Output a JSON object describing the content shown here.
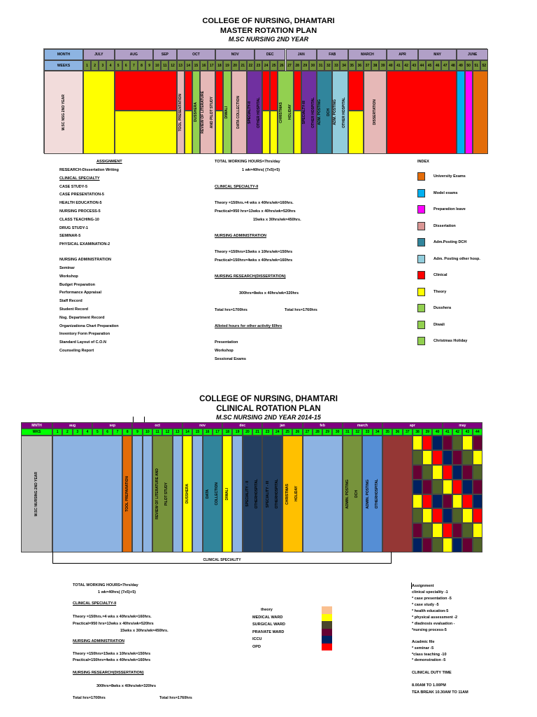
{
  "top": {
    "title": "COLLEGE OF NURSING, DHAMTARI",
    "subtitle": "MASTER ROTATION PLAN",
    "course": "M.SC NURSING 2ND YEAR",
    "chart": {
      "month_label": "MONTH",
      "weeks_label": "WEEKS",
      "row_label": "M.SC NSG 2ND YEAR",
      "months": [
        {
          "label": "JULY",
          "span": 4
        },
        {
          "label": "AUG",
          "span": 5
        },
        {
          "label": "SEP",
          "span": 3
        },
        {
          "label": "OCT",
          "span": 5
        },
        {
          "label": "NOV",
          "span": 5
        },
        {
          "label": "DEC",
          "span": 4
        },
        {
          "label": "JAN",
          "span": 4
        },
        {
          "label": "FAB",
          "span": 4
        },
        {
          "label": "MARCH",
          "span": 5
        },
        {
          "label": "APR",
          "span": 4
        },
        {
          "label": "MAY",
          "span": 5
        },
        {
          "label": "JUNE",
          "span": 4
        }
      ],
      "weeks": [
        "1",
        "2",
        "3",
        "4",
        "5",
        "6",
        "7",
        "8",
        "9",
        "10",
        "11",
        "12",
        "13",
        "14",
        "15",
        "16",
        "17",
        "18",
        "19",
        "20",
        "21",
        "22",
        "23",
        "24",
        "25",
        "26",
        "27",
        "28",
        "29",
        "30",
        "31",
        "32",
        "33",
        "34",
        "35",
        "36",
        "37",
        "38",
        "39",
        "40",
        "41",
        "42",
        "43",
        "44",
        "45",
        "46",
        "47",
        "48",
        "49",
        "50",
        "51",
        "52"
      ],
      "blocks": [
        {
          "from": 1,
          "to": 4,
          "color": "#ffff00",
          "lines": []
        },
        {
          "from": 5,
          "to": 12,
          "split": [
            "#ff0000",
            "#ffff00"
          ],
          "lines": []
        },
        {
          "from": 13,
          "to": 13,
          "color": "#e6b8b7",
          "lines": [
            "TOOL PRESENTATION"
          ]
        },
        {
          "from": 14,
          "to": 14,
          "split": [
            "#ff0000",
            "#ffff00"
          ],
          "lines": []
        },
        {
          "from": 15,
          "to": 15,
          "color": "#92d050",
          "lines": [
            "DUSSHERA"
          ]
        },
        {
          "from": 16,
          "to": 17,
          "color": "#e6b8b7",
          "lines": [
            "REVIEW OF LITERATURE",
            "AND PILOT STUDY"
          ]
        },
        {
          "from": 18,
          "to": 18,
          "split": [
            "#ff0000",
            "#ffff00"
          ],
          "lines": []
        },
        {
          "from": 19,
          "to": 19,
          "color": "#92d050",
          "lines": [
            "DIWALI"
          ]
        },
        {
          "from": 20,
          "to": 21,
          "color": "#e6b8b7",
          "lines": [
            "DATA COLLECTION"
          ]
        },
        {
          "from": 22,
          "to": 23,
          "color": "#7030a0",
          "lines": [
            "SPECIALTY-II",
            "OTHER HOSPITAL"
          ]
        },
        {
          "from": 24,
          "to": 24,
          "split": [
            "#ff0000",
            "#ffff00"
          ],
          "lines": []
        },
        {
          "from": 25,
          "to": 25,
          "split": [
            "#ff0000",
            "#ffff00"
          ],
          "lines": []
        },
        {
          "from": 26,
          "to": 27,
          "color": "#92d050",
          "lines": [
            "CHRISTMAS",
            "HOLIDAY"
          ]
        },
        {
          "from": 28,
          "to": 28,
          "split": [
            "#ff0000",
            "#ffff00"
          ],
          "lines": []
        },
        {
          "from": 29,
          "to": 30,
          "color": "#7030a0",
          "lines": [
            "SPECIALTY-III",
            "OTHER HOSPITAL"
          ]
        },
        {
          "from": 31,
          "to": 32,
          "color": "#31859c",
          "lines": [
            "ADM. POSTING",
            "DCH"
          ]
        },
        {
          "from": 33,
          "to": 34,
          "color": "#92cddc",
          "lines": [
            "ADM. POSTING",
            "OTHER HOSPITAL"
          ]
        },
        {
          "from": 35,
          "to": 36,
          "split": [
            "#ff0000",
            "#ffff00"
          ],
          "lines": []
        },
        {
          "from": 37,
          "to": 39,
          "color": "#e6b8b7",
          "lines": [
            "DISSERTATION"
          ]
        },
        {
          "from": 40,
          "to": 48,
          "color": "#ff0000",
          "lines": []
        },
        {
          "from": 49,
          "to": 49,
          "color": "#00b0f0",
          "lines": []
        },
        {
          "from": 50,
          "to": 50,
          "color": "#ff00ff",
          "lines": []
        },
        {
          "from": 51,
          "to": 52,
          "color": "#e36c09",
          "lines": []
        }
      ]
    },
    "assignment": {
      "heading": "ASSIGNMENT",
      "items": [
        "RESEARCH-Dissertation Writing",
        "CLINICAL SPECIALTY",
        "CASE STUDY-5",
        "CASE PRESENTATION-5",
        "HEALTH EDUCATION-5",
        "NURSING PROCESS-5",
        "CLASS TEACHING-10",
        "DRUG STUDY-1",
        "SEMINAR-5",
        "PHYSICAL EXAMINATION-2"
      ],
      "admin_heading": "NURSING ADMINISTRATION",
      "admin_items": [
        "Seminar",
        "Workshop",
        "Budget Preparation",
        "Performance Appraisal",
        "Staff Record",
        "Student Record",
        "Nsg. Department Record",
        "Organizationa Chart Preparation",
        "Inventory Form Preparation",
        "Standard Layout of C.O.N",
        "Counseling Report"
      ]
    },
    "hours": {
      "total_working": "TOTAL WORKING HOURS=7hrs/day",
      "week": "1 wk=40hrs( (7x5)+5)",
      "cs_heading": "CLINICAL SPECIALTY-II",
      "cs_theory": "Theory     =150hrs.=4 wks x 40hrs/wk=160hrs.",
      "cs_practical": "Practical=950 hrs=13wks x 40hrs/wk=520hrs",
      "cs_practical2": "15wks x 30hrs/wk=450hrs.",
      "na_heading": "NURSING ADMINISTRATION",
      "na_theory": "Theory     =150hrs=15wks x 10hrs/wk=150hrs",
      "na_practical": "Practical=150hrs=4wks x 40hrs/wk=160hrs",
      "nr_heading": "NURSING RESEARCH(DISSERTATION)",
      "nr_hours": "300hrs=8wks x 40hrs/wk=320hrs",
      "total1": "Total hrs=1700hrs",
      "total2": "Total hrs=1760hrs",
      "alloted": "Alloted hours for other activity 60hrs",
      "other": [
        "Presentation",
        "Workshop",
        "Sessional Exams"
      ]
    },
    "index": {
      "heading": "INDEX",
      "items": [
        {
          "label": "University Exams",
          "color": "#e36c09"
        },
        {
          "label": "Model exams",
          "color": "#00b0f0"
        },
        {
          "label": "Preparation leave",
          "color": "#ff00ff"
        },
        {
          "label": "Dissertation",
          "color": "#da9694"
        },
        {
          "label": "Adm.Posting DCH",
          "color": "#31859c"
        },
        {
          "label": "Adm. Posting other hosp.",
          "color": "#92cddc"
        },
        {
          "label": "Clinical",
          "color": "#ff0000"
        },
        {
          "label": "Theory",
          "color": "#ffff00"
        },
        {
          "label": "Dusshera",
          "color": "#92d050"
        },
        {
          "label": "Diwali",
          "color": "#92d050"
        },
        {
          "label": "Christmas Holiday",
          "color": "#92d050"
        }
      ]
    }
  },
  "bottom": {
    "title": "COLLEGE OF NURSING, DHAMTARI",
    "subtitle": "CLINICAL ROTATION PLAN",
    "course": "M.SC NURSING 2ND YEAR 2014-15",
    "chart": {
      "month_label": "MNTH",
      "weeks_label": "WKS",
      "row_label": "M.SC NURSING 2ND YEAR",
      "months": [
        {
          "label": "aug",
          "span": 4
        },
        {
          "label": "sep",
          "span": 4
        },
        {
          "label": "oct",
          "span": 5
        },
        {
          "label": "nov",
          "span": 4
        },
        {
          "label": "dec",
          "span": 4
        },
        {
          "label": "jan",
          "span": 4
        },
        {
          "label": "feb",
          "span": 4
        },
        {
          "label": "march",
          "span": 4
        },
        {
          "label": "apr",
          "span": 6
        },
        {
          "label": "may",
          "span": 4
        }
      ],
      "weeks": [
        "1",
        "2",
        "3",
        "4",
        "5",
        "6",
        "7",
        "8",
        "9",
        "10",
        "11",
        "12",
        "13",
        "14",
        "15",
        "16",
        "17",
        "18",
        "19",
        "20",
        "21",
        "23",
        "24",
        "25",
        "26",
        "27",
        "28",
        "29",
        "30",
        "31",
        "32",
        "33",
        "34",
        "35",
        "36",
        "37",
        "38",
        "39",
        "40",
        "41",
        "42",
        "43",
        "44"
      ],
      "blocks": [
        {
          "from": 1,
          "to": 7,
          "color": "#8db3e2",
          "lines": []
        },
        {
          "from": 8,
          "to": 8,
          "color": "#e36c09",
          "lines": [
            "TOOL PREPARATION"
          ]
        },
        {
          "from": 9,
          "to": 9,
          "color": "#8db3e2",
          "lines": []
        },
        {
          "from": 10,
          "to": 10,
          "color": "#8db3e2",
          "lines": []
        },
        {
          "from": 11,
          "to": 12,
          "color": "#77933c",
          "lines": [
            "REVIEW OF LITERATURE AND",
            "PILOT STUDY"
          ]
        },
        {
          "from": 13,
          "to": 13,
          "color": "#8db3e2",
          "lines": []
        },
        {
          "from": 14,
          "to": 14,
          "color": "#ffff00",
          "lines": [
            "DUSSHERA"
          ]
        },
        {
          "from": 15,
          "to": 15,
          "color": "#8db3e2",
          "lines": []
        },
        {
          "from": 16,
          "to": 17,
          "color": "#31849b",
          "lines": [
            "DATA",
            "COLLECTION"
          ]
        },
        {
          "from": 18,
          "to": 18,
          "color": "#ffff00",
          "lines": [
            "DIWALI"
          ]
        },
        {
          "from": 19,
          "to": 19,
          "color": "#8db3e2",
          "lines": []
        },
        {
          "from": 20,
          "to": 21,
          "color": "#243f60",
          "lines": [
            "SPECIALITY - II",
            "OTHERHOSPITAL"
          ]
        },
        {
          "from": 22,
          "to": 23,
          "color": "#243f60",
          "lines": [
            "SPECIALITY - III",
            "OTHERHOSPITAL"
          ]
        },
        {
          "from": 24,
          "to": 25,
          "color": "#ffc000",
          "lines": [
            "CHRISTMAS",
            "HOLIDAY"
          ]
        },
        {
          "from": 26,
          "to": 29,
          "color": "#8db3e2",
          "lines": []
        },
        {
          "from": 30,
          "to": 31,
          "color": "#77933c",
          "lines": [
            "ADMIN. POSTING",
            "DCH"
          ]
        },
        {
          "from": 32,
          "to": 33,
          "color": "#558ed5",
          "lines": [
            "ADMIN. POSTING",
            "OTHERHOSPITAL"
          ]
        },
        {
          "from": 34,
          "to": 36,
          "color": "#953735",
          "lines": []
        }
      ],
      "grid_from": 37,
      "grid_palette": {
        "Y": "#ffff00",
        "R": "#ff0000",
        "N": "#002060",
        "M": "#660033",
        "O": "#4f6228"
      },
      "grid": [
        "YRNMOYM",
        "OYRNMOY",
        "MOYRNMO",
        "NMOYRNM",
        "YRNMYRN",
        "OYRNOYR",
        "MOYRMOY",
        "NMOYNMO"
      ],
      "bracket_label": "CLINICAL SPECIALITY"
    },
    "hours": {
      "total_working": "TOTAL WORKING HOURS=7hrs/day",
      "week": "1 wk=40hrs( (7x5)+5)",
      "cs_heading": "CLINICAL SPECIALTY-II",
      "cs_theory": "Theory     =150hrs.=4 wks x 40hrs/wk=160hrs.",
      "cs_practical": "Practical=950 hrs=13wks x 40hrs/wk=520hrs",
      "cs_practical2": "15wks x 30hrs/wk=450hrs.",
      "na_heading": "NURSING ADMINISTRATION",
      "na_theory": "Theory     =150hrs=15wks x 10hrs/wk=150hrs",
      "na_practical": "Practical=150hrs=4wks x 40hrs/wk=160hrs",
      "nr_heading": "NURSING RESEARCH(DISSERTATION)",
      "nr_hours": "300hrs=8wks x 40hrs/wk=320hrs",
      "total1": "Total hrs=1700hrs",
      "total2": "Total hrs=1760hrs"
    },
    "legend": [
      {
        "label": "theory",
        "color": "#fac090"
      },
      {
        "label": "MEDICAL WARD",
        "color": "#ffff00"
      },
      {
        "label": "SURGICAL WARD",
        "color": "#4a452a"
      },
      {
        "label": "PRAIVATE WARD",
        "color": "#660033"
      },
      {
        "label": "ICCU",
        "color": "#002060"
      },
      {
        "label": "OPD",
        "color": "#ff0000"
      }
    ],
    "assignment": [
      "Assignment",
      "clinical speciality  -1",
      "*  case presentation -5",
      "* case study -5",
      "* health education-5",
      "* physical assessment -2",
      "* diadnosis evaluation -",
      "*nursing process-5",
      "Acadmic file",
      "* seminar -5",
      "*class teaching -10",
      "* demonstration -5",
      "CLINICAL  DUTY TIME",
      "8.00AM  TO 1.00PM",
      "TEA BREAK 10.30AM TO 11AM"
    ]
  }
}
